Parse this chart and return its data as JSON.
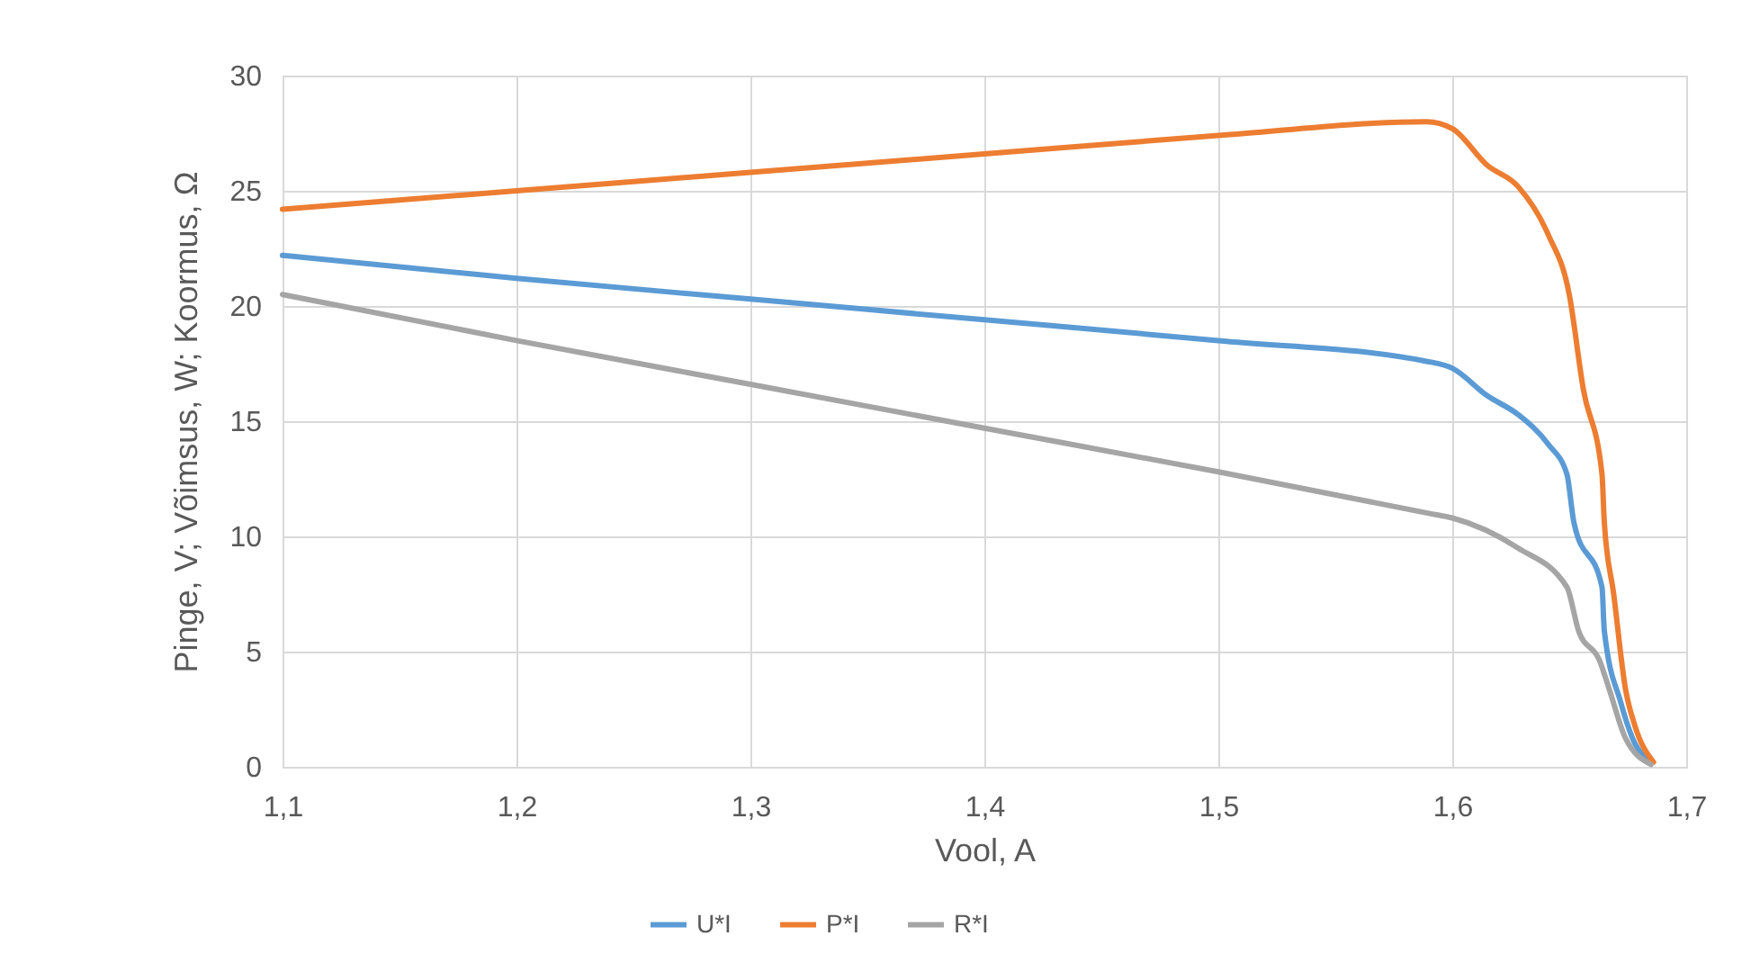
{
  "chart_data": {
    "type": "line",
    "xlabel": "Vool, A",
    "ylabel": "Pinge, V; Võimsus, W; Koormus, Ω",
    "xlim": [
      1.1,
      1.7
    ],
    "xticks": [
      {
        "value": 1.1,
        "label": "1,1"
      },
      {
        "value": 1.2,
        "label": "1,2"
      },
      {
        "value": 1.3,
        "label": "1,3"
      },
      {
        "value": 1.4,
        "label": "1,4"
      },
      {
        "value": 1.5,
        "label": "1,5"
      },
      {
        "value": 1.6,
        "label": "1,6"
      },
      {
        "value": 1.7,
        "label": "1,7"
      }
    ],
    "ylim": [
      0,
      30
    ],
    "yticks": [
      0,
      5,
      10,
      15,
      20,
      25,
      30
    ],
    "grid": true,
    "legend": "bottom",
    "marker": "none",
    "line_style": "solid",
    "series": [
      {
        "name": "U*I",
        "color": "#5b9bd5",
        "x": [
          1.1,
          1.2,
          1.3,
          1.4,
          1.5,
          1.589,
          1.6,
          1.615,
          1.628,
          1.641,
          1.649,
          1.652,
          1.664,
          1.665,
          1.672,
          1.677,
          1.685
        ],
        "values": [
          22.2,
          21.2,
          20.3,
          19.4,
          18.5,
          17.6,
          17.3,
          16.1,
          15.3,
          14.0,
          12.7,
          10.6,
          7.8,
          5.9,
          2.8,
          1.25,
          0.2
        ]
      },
      {
        "name": "P*I",
        "color": "#ed7d31",
        "x": [
          1.1,
          1.2,
          1.3,
          1.4,
          1.5,
          1.589,
          1.6,
          1.615,
          1.628,
          1.641,
          1.65,
          1.656,
          1.664,
          1.665,
          1.669,
          1.674,
          1.678,
          1.686
        ],
        "values": [
          24.2,
          25.0,
          25.8,
          26.6,
          27.4,
          28.0,
          27.7,
          26.1,
          25.2,
          23.1,
          20.5,
          16.4,
          12.7,
          10.6,
          7.5,
          3.4,
          1.8,
          0.2
        ]
      },
      {
        "name": "R*I",
        "color": "#a5a5a5",
        "x": [
          1.1,
          1.2,
          1.3,
          1.4,
          1.5,
          1.59,
          1.6,
          1.628,
          1.649,
          1.654,
          1.663,
          1.667,
          1.674,
          1.685
        ],
        "values": [
          20.5,
          18.5,
          16.6,
          14.7,
          12.8,
          11.0,
          10.8,
          9.5,
          7.8,
          5.9,
          4.6,
          3.4,
          1.25,
          0.1
        ]
      }
    ]
  }
}
